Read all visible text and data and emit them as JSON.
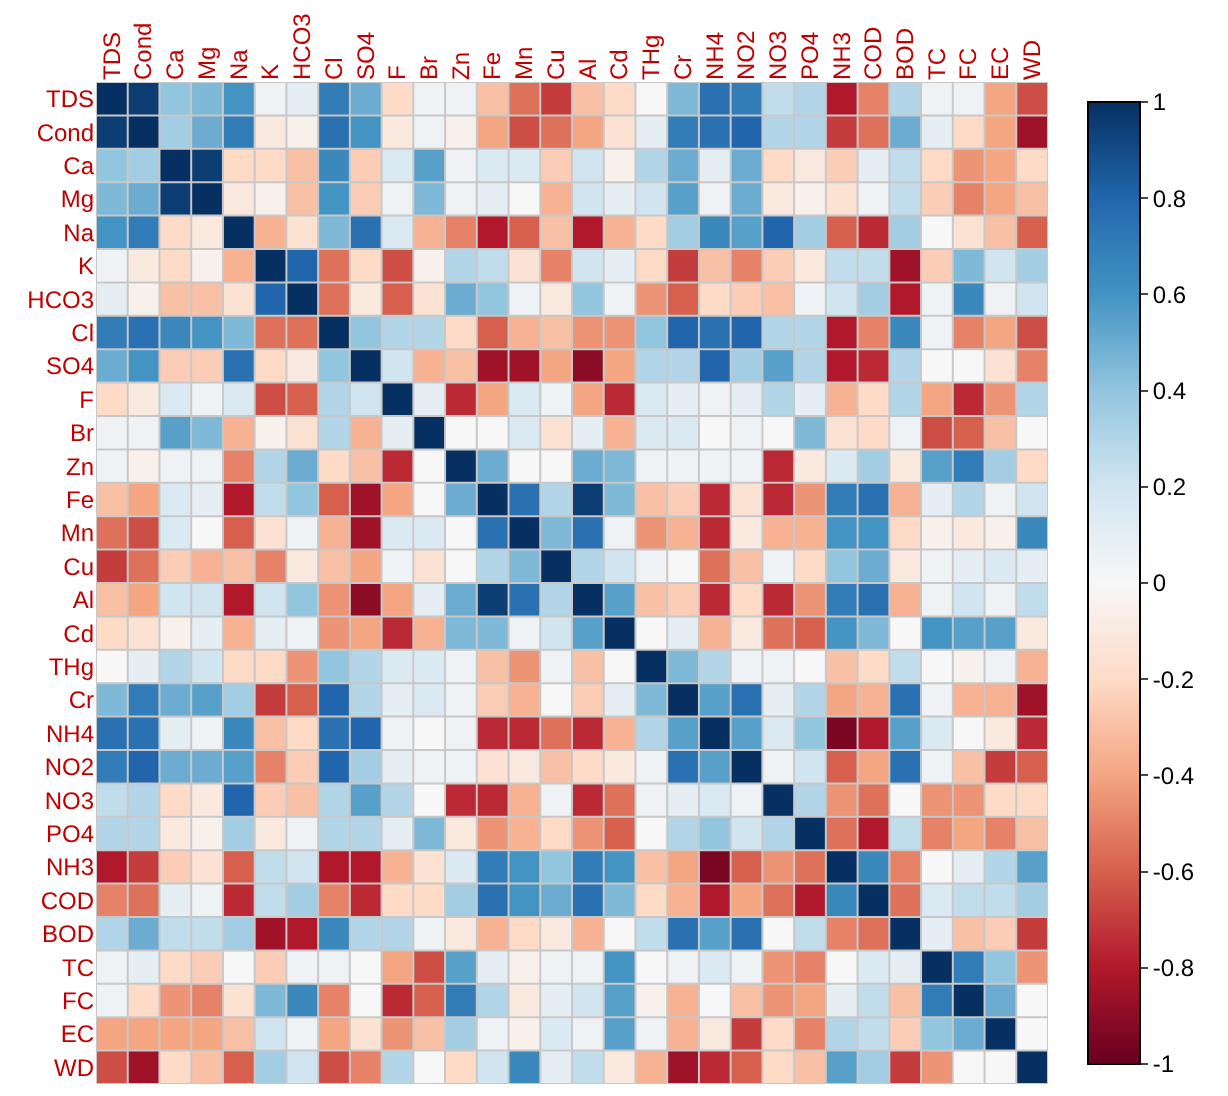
{
  "chart_data": {
    "type": "heatmap",
    "categories": [
      "TDS",
      "Cond",
      "Ca",
      "Mg",
      "Na",
      "K",
      "HCO3",
      "Cl",
      "SO4",
      "F",
      "Br",
      "Zn",
      "Fe",
      "Mn",
      "Cu",
      "Al",
      "Cd",
      "THg",
      "Cr",
      "NH4",
      "NO2",
      "NO3",
      "PO4",
      "NH3",
      "COD",
      "BOD",
      "TC",
      "FC",
      "EC",
      "WD"
    ],
    "y_categories": [
      "TDS",
      "Cond",
      "Ca",
      "Mg",
      "Na",
      "K",
      "HCO3",
      "Cl",
      "SO4",
      "F",
      "Br",
      "Zn",
      "Fe",
      "Mn",
      "Cu",
      "Al",
      "Cd",
      "THg",
      "Cr",
      "NH4",
      "NO2",
      "NO3",
      "PO4",
      "NH3",
      "COD",
      "BOD",
      "TC",
      "FC",
      "EC",
      "WD"
    ],
    "cells": [
      [
        1,
        0.95,
        0.4,
        0.45,
        0.6,
        0.05,
        0.1,
        0.7,
        0.5,
        -0.2,
        0.05,
        0.05,
        -0.3,
        -0.55,
        -0.7,
        -0.3,
        -0.2,
        0,
        0.45,
        0.75,
        0.7,
        0.25,
        0.3,
        -0.8,
        -0.5,
        0.3,
        0.05,
        0.05,
        -0.4,
        -0.65
      ],
      [
        0.95,
        1,
        0.35,
        0.5,
        0.7,
        -0.1,
        -0.05,
        0.75,
        0.6,
        -0.1,
        0.05,
        -0.05,
        -0.4,
        -0.65,
        -0.55,
        -0.4,
        -0.15,
        0.1,
        0.7,
        0.75,
        0.8,
        0.3,
        0.3,
        -0.7,
        -0.55,
        0.5,
        0.1,
        -0.2,
        -0.4,
        -0.85
      ],
      [
        0.4,
        0.35,
        1,
        0.95,
        -0.2,
        -0.2,
        -0.3,
        0.65,
        -0.25,
        0.15,
        0.55,
        0.05,
        0.15,
        0.15,
        -0.25,
        0.2,
        -0.05,
        0.3,
        0.5,
        0.1,
        0.5,
        -0.2,
        -0.1,
        -0.25,
        0.1,
        0.25,
        -0.2,
        -0.45,
        -0.4,
        -0.2
      ],
      [
        0.45,
        0.5,
        0.95,
        1,
        -0.1,
        -0.05,
        -0.3,
        0.6,
        -0.25,
        0.05,
        0.45,
        0.05,
        0.1,
        0,
        -0.35,
        0.2,
        0.1,
        0.2,
        0.55,
        0.05,
        0.5,
        -0.1,
        -0.05,
        -0.15,
        0.05,
        0.25,
        -0.25,
        -0.5,
        -0.4,
        -0.3
      ],
      [
        0.6,
        0.7,
        -0.2,
        -0.1,
        1,
        -0.35,
        -0.15,
        0.45,
        0.75,
        0.15,
        -0.35,
        -0.5,
        -0.8,
        -0.6,
        -0.3,
        -0.8,
        -0.35,
        -0.2,
        0.35,
        0.65,
        0.55,
        0.8,
        0.35,
        -0.6,
        -0.75,
        0.35,
        0,
        -0.15,
        -0.3,
        -0.6
      ],
      [
        0.05,
        -0.1,
        -0.2,
        -0.05,
        -0.35,
        1,
        0.8,
        -0.55,
        -0.2,
        -0.65,
        -0.05,
        0.3,
        0.25,
        -0.15,
        -0.5,
        0.2,
        0.1,
        -0.2,
        -0.7,
        -0.3,
        -0.5,
        -0.25,
        -0.1,
        0.25,
        0.25,
        -0.85,
        -0.25,
        0.45,
        0.2,
        0.35
      ],
      [
        0.1,
        -0.05,
        -0.3,
        -0.3,
        -0.15,
        0.8,
        1,
        -0.55,
        -0.1,
        -0.6,
        -0.15,
        0.5,
        0.4,
        0.05,
        -0.1,
        0.4,
        0.05,
        -0.45,
        -0.6,
        -0.2,
        -0.25,
        -0.3,
        0.05,
        0.2,
        0.35,
        -0.8,
        0.05,
        0.65,
        0.05,
        0.2
      ],
      [
        0.7,
        0.75,
        0.65,
        0.6,
        0.45,
        -0.55,
        -0.55,
        1,
        0.4,
        0.3,
        0.3,
        -0.2,
        -0.6,
        -0.35,
        -0.3,
        -0.45,
        -0.45,
        0.4,
        0.8,
        0.75,
        0.8,
        0.3,
        0.3,
        -0.8,
        -0.5,
        0.65,
        0.05,
        -0.5,
        -0.4,
        -0.65
      ],
      [
        0.5,
        0.6,
        -0.25,
        -0.25,
        0.75,
        -0.2,
        -0.1,
        0.4,
        1,
        0.2,
        -0.35,
        -0.3,
        -0.85,
        -0.85,
        -0.4,
        -0.9,
        -0.4,
        0.3,
        0.3,
        0.8,
        0.35,
        0.55,
        0.3,
        -0.8,
        -0.75,
        0.3,
        0,
        0,
        -0.15,
        -0.5
      ],
      [
        -0.2,
        -0.1,
        0.15,
        0.05,
        0.15,
        -0.65,
        -0.6,
        0.3,
        0.2,
        1,
        0.1,
        -0.75,
        -0.4,
        0.15,
        0.05,
        -0.4,
        -0.75,
        0.15,
        0.1,
        0.05,
        0.1,
        0.3,
        0.1,
        -0.35,
        -0.2,
        0.3,
        -0.4,
        -0.75,
        -0.45,
        0.3
      ],
      [
        0.05,
        0.05,
        0.55,
        0.45,
        -0.35,
        -0.05,
        -0.15,
        0.3,
        -0.35,
        0.1,
        1,
        0,
        0,
        0.15,
        -0.15,
        0.1,
        -0.35,
        0.15,
        0.15,
        0,
        0.05,
        0,
        0.45,
        -0.15,
        -0.2,
        0.05,
        -0.65,
        -0.6,
        -0.3,
        0
      ],
      [
        0.05,
        -0.05,
        0.05,
        0.05,
        -0.5,
        0.3,
        0.5,
        -0.2,
        -0.3,
        -0.75,
        0,
        1,
        0.5,
        0,
        0,
        0.5,
        0.45,
        0.05,
        0.05,
        0.05,
        0.05,
        -0.75,
        -0.1,
        0.15,
        0.35,
        -0.1,
        0.55,
        0.7,
        0.35,
        -0.2
      ],
      [
        -0.3,
        -0.4,
        0.15,
        0.1,
        -0.8,
        0.25,
        0.4,
        -0.6,
        -0.85,
        -0.4,
        0,
        0.5,
        1,
        0.75,
        0.3,
        0.95,
        0.45,
        -0.3,
        -0.25,
        -0.75,
        -0.15,
        -0.75,
        -0.45,
        0.7,
        0.75,
        -0.35,
        0.1,
        0.3,
        0.05,
        0.2
      ],
      [
        -0.55,
        -0.65,
        0.15,
        0,
        -0.6,
        -0.15,
        0.05,
        -0.35,
        -0.85,
        0.15,
        0.15,
        0,
        0.75,
        1,
        0.45,
        0.75,
        0.05,
        -0.45,
        -0.35,
        -0.75,
        -0.1,
        -0.35,
        -0.35,
        0.6,
        0.6,
        -0.2,
        -0.05,
        -0.1,
        -0.05,
        0.65
      ],
      [
        -0.7,
        -0.55,
        -0.25,
        -0.35,
        -0.3,
        -0.5,
        -0.1,
        -0.3,
        -0.4,
        0.05,
        -0.15,
        0,
        0.3,
        0.45,
        1,
        0.3,
        0.2,
        0.05,
        0,
        -0.55,
        -0.3,
        0.05,
        -0.2,
        0.4,
        0.5,
        -0.1,
        0.05,
        0.1,
        0.15,
        0.1
      ],
      [
        -0.3,
        -0.4,
        0.2,
        0.2,
        -0.8,
        0.2,
        0.4,
        -0.45,
        -0.9,
        -0.4,
        0.1,
        0.5,
        0.95,
        0.75,
        0.3,
        1,
        0.55,
        -0.3,
        -0.25,
        -0.75,
        -0.2,
        -0.75,
        -0.45,
        0.7,
        0.75,
        -0.35,
        0.05,
        0.2,
        0.05,
        0.25
      ],
      [
        -0.2,
        -0.15,
        -0.05,
        0.1,
        -0.35,
        0.1,
        0.05,
        -0.45,
        -0.4,
        -0.75,
        -0.35,
        0.45,
        0.45,
        0.05,
        0.2,
        0.55,
        1,
        0,
        0.1,
        -0.35,
        -0.1,
        -0.55,
        -0.6,
        0.6,
        0.45,
        0,
        0.6,
        0.55,
        0.55,
        -0.1
      ],
      [
        0,
        0.1,
        0.3,
        0.2,
        -0.2,
        -0.2,
        -0.45,
        0.4,
        0.3,
        0.15,
        0.15,
        0.05,
        -0.3,
        -0.45,
        0.05,
        -0.3,
        0,
        1,
        0.45,
        0.3,
        0.05,
        0.05,
        0,
        -0.3,
        -0.2,
        0.25,
        0,
        -0.05,
        0.05,
        -0.35
      ],
      [
        0.45,
        0.7,
        0.5,
        0.55,
        0.35,
        -0.7,
        -0.6,
        0.8,
        0.3,
        0.1,
        0.15,
        0.05,
        -0.25,
        -0.35,
        0,
        -0.25,
        0.1,
        0.45,
        1,
        0.55,
        0.75,
        0.1,
        0.3,
        -0.4,
        -0.35,
        0.75,
        0.05,
        -0.35,
        -0.35,
        -0.85
      ],
      [
        0.75,
        0.75,
        0.1,
        0.05,
        0.65,
        -0.3,
        -0.2,
        0.75,
        0.8,
        0.05,
        0,
        0.05,
        -0.75,
        -0.75,
        -0.55,
        -0.75,
        -0.35,
        0.3,
        0.55,
        1,
        0.55,
        0.15,
        0.4,
        -0.95,
        -0.8,
        0.55,
        0.15,
        0,
        -0.1,
        -0.75
      ],
      [
        0.7,
        0.8,
        0.5,
        0.5,
        0.55,
        -0.5,
        -0.25,
        0.8,
        0.35,
        0.1,
        0.05,
        0.05,
        -0.15,
        -0.1,
        -0.3,
        -0.2,
        -0.1,
        0.05,
        0.75,
        0.55,
        1,
        0.05,
        0.2,
        -0.6,
        -0.4,
        0.75,
        0.05,
        -0.3,
        -0.7,
        -0.6
      ],
      [
        0.25,
        0.3,
        -0.2,
        -0.1,
        0.8,
        -0.25,
        -0.3,
        0.3,
        0.55,
        0.3,
        0,
        -0.75,
        -0.75,
        -0.35,
        0.05,
        -0.75,
        -0.55,
        0.05,
        0.1,
        0.15,
        0.05,
        1,
        0.3,
        -0.45,
        -0.55,
        0,
        -0.45,
        -0.45,
        -0.2,
        -0.2
      ],
      [
        0.3,
        0.3,
        -0.1,
        -0.05,
        0.35,
        -0.1,
        0.05,
        0.3,
        0.3,
        0.1,
        0.45,
        -0.1,
        -0.45,
        -0.35,
        -0.2,
        -0.45,
        -0.6,
        0,
        0.3,
        0.4,
        0.2,
        0.3,
        1,
        -0.55,
        -0.8,
        0.25,
        -0.5,
        -0.4,
        -0.5,
        -0.3
      ],
      [
        -0.8,
        -0.7,
        -0.25,
        -0.15,
        -0.6,
        0.25,
        0.2,
        -0.8,
        -0.8,
        -0.35,
        -0.15,
        0.15,
        0.7,
        0.6,
        0.4,
        0.7,
        0.6,
        -0.3,
        -0.4,
        -0.95,
        -0.6,
        -0.45,
        -0.55,
        1,
        0.65,
        -0.5,
        0,
        0.1,
        0.3,
        0.55
      ],
      [
        -0.5,
        -0.55,
        0.1,
        0.05,
        -0.75,
        0.25,
        0.35,
        -0.5,
        -0.75,
        -0.2,
        -0.2,
        0.35,
        0.75,
        0.6,
        0.5,
        0.75,
        0.45,
        -0.2,
        -0.35,
        -0.8,
        -0.4,
        -0.55,
        -0.8,
        0.65,
        1,
        -0.55,
        0.15,
        0.25,
        0.25,
        0.35
      ],
      [
        0.3,
        0.5,
        0.25,
        0.25,
        0.35,
        -0.85,
        -0.8,
        0.65,
        0.3,
        0.3,
        0.05,
        -0.1,
        -0.35,
        -0.2,
        -0.1,
        -0.35,
        0,
        0.25,
        0.75,
        0.55,
        0.75,
        0,
        0.25,
        -0.5,
        -0.55,
        1,
        0.1,
        -0.3,
        -0.25,
        -0.7
      ],
      [
        0.05,
        0.1,
        -0.2,
        -0.25,
        0,
        -0.25,
        0.05,
        0.05,
        0,
        -0.4,
        -0.65,
        0.55,
        0.1,
        -0.05,
        0.05,
        0.05,
        0.6,
        0,
        0.05,
        0.15,
        0.05,
        -0.45,
        -0.5,
        0,
        0.15,
        0.1,
        1,
        0.7,
        0.4,
        -0.45
      ],
      [
        0.05,
        -0.2,
        -0.45,
        -0.5,
        -0.15,
        0.45,
        0.65,
        -0.5,
        0,
        -0.75,
        -0.6,
        0.7,
        0.3,
        -0.1,
        0.1,
        0.2,
        0.55,
        -0.05,
        -0.35,
        0,
        -0.3,
        -0.45,
        -0.4,
        0.1,
        0.25,
        -0.3,
        0.7,
        1,
        0.5,
        0
      ],
      [
        -0.4,
        -0.4,
        -0.4,
        -0.4,
        -0.3,
        0.2,
        0.05,
        -0.4,
        -0.15,
        -0.45,
        -0.3,
        0.35,
        0.05,
        -0.05,
        0.15,
        0.05,
        0.55,
        0.05,
        -0.35,
        -0.1,
        -0.7,
        -0.2,
        -0.5,
        0.3,
        0.25,
        -0.25,
        0.4,
        0.5,
        1,
        0
      ],
      [
        -0.65,
        -0.85,
        -0.2,
        -0.3,
        -0.6,
        0.35,
        0.2,
        -0.65,
        -0.5,
        0.3,
        0,
        -0.2,
        0.2,
        0.65,
        0.1,
        0.25,
        -0.1,
        -0.35,
        -0.85,
        -0.75,
        -0.6,
        -0.2,
        -0.3,
        0.55,
        0.35,
        -0.7,
        -0.45,
        0,
        0,
        1
      ]
    ],
    "clim": [
      -1,
      1
    ],
    "cticks": [
      -1,
      -0.8,
      -0.6,
      -0.4,
      -0.2,
      0,
      0.2,
      0.4,
      0.6,
      0.8,
      1
    ],
    "grid": true
  }
}
